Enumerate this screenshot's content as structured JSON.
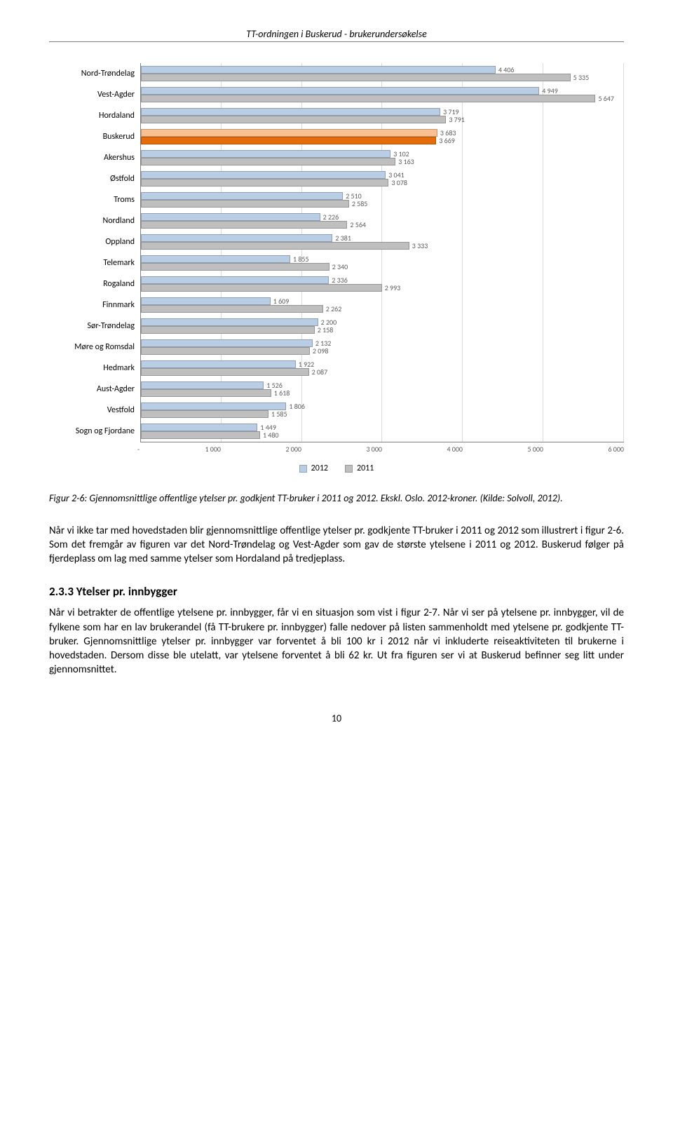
{
  "header_title": "TT-ordningen i Buskerud - brukerundersøkelse",
  "chart": {
    "type": "bar-horizontal-grouped",
    "xmax": 6000,
    "xtick_step": 1000,
    "xticks": [
      "-",
      "1 000",
      "2 000",
      "3 000",
      "4 000",
      "5 000",
      "6 000"
    ],
    "bar_fill_2012": "#b9cde5",
    "bar_fill_2011": "#bfbfbf",
    "highlight_fill_2012": "#fac090",
    "highlight_fill_2011": "#e46c0a",
    "grid_color": "#d9d9d9",
    "axis_color": "#808080",
    "label_fontsize": 10,
    "cat_fontsize": 12,
    "categories": [
      {
        "name": "Nord-Trøndelag",
        "v2012": 4406,
        "v2011": 5335,
        "label2012": "4 406",
        "label2011": "5 335"
      },
      {
        "name": "Vest-Agder",
        "v2012": 4949,
        "v2011": 5647,
        "label2012": "4 949",
        "label2011": "5 647"
      },
      {
        "name": "Hordaland",
        "v2012": 3719,
        "v2011": 3791,
        "label2012": "3 719",
        "label2011": "3 791"
      },
      {
        "name": "Buskerud",
        "v2012": 3683,
        "v2011": 3669,
        "label2012": "3 683",
        "label2011": "3 669",
        "highlight": true
      },
      {
        "name": "Akershus",
        "v2012": 3102,
        "v2011": 3163,
        "label2012": "3 102",
        "label2011": "3 163"
      },
      {
        "name": "Østfold",
        "v2012": 3041,
        "v2011": 3078,
        "label2012": "3 041",
        "label2011": "3 078"
      },
      {
        "name": "Troms",
        "v2012": 2510,
        "v2011": 2585,
        "label2012": "2 510",
        "label2011": "2 585"
      },
      {
        "name": "Nordland",
        "v2012": 2226,
        "v2011": 2564,
        "label2012": "2 226",
        "label2011": "2 564"
      },
      {
        "name": "Oppland",
        "v2012": 2381,
        "v2011": 3333,
        "label2012": "2 381",
        "label2011": "3 333"
      },
      {
        "name": "Telemark",
        "v2012": 1855,
        "v2011": 2340,
        "label2012": "1 855",
        "label2011": "2 340"
      },
      {
        "name": "Rogaland",
        "v2012": 2336,
        "v2011": 2993,
        "label2012": "2 336",
        "label2011": "2 993"
      },
      {
        "name": "Finnmark",
        "v2012": 1609,
        "v2011": 2262,
        "label2012": "1 609",
        "label2011": "2 262"
      },
      {
        "name": "Sør-Trøndelag",
        "v2012": 2200,
        "v2011": 2158,
        "label2012": "2 200",
        "label2011": "2 158"
      },
      {
        "name": "Møre og Romsdal",
        "v2012": 2132,
        "v2011": 2098,
        "label2012": "2 132",
        "label2011": "2 098"
      },
      {
        "name": "Hedmark",
        "v2012": 1922,
        "v2011": 2087,
        "label2012": "1 922",
        "label2011": "2 087"
      },
      {
        "name": "Aust-Agder",
        "v2012": 1526,
        "v2011": 1618,
        "label2012": "1 526",
        "label2011": "1 618"
      },
      {
        "name": "Vestfold",
        "v2012": 1806,
        "v2011": 1585,
        "label2012": "1 806",
        "label2011": "1 585"
      },
      {
        "name": "Sogn og Fjordane",
        "v2012": 1449,
        "v2011": 1480,
        "label2012": "1 449",
        "label2011": "1 480"
      }
    ],
    "legend": [
      {
        "label": "2012",
        "color": "#b9cde5"
      },
      {
        "label": "2011",
        "color": "#bfbfbf"
      }
    ]
  },
  "caption": "Figur 2-6: Gjennomsnittlige offentlige ytelser pr. godkjent TT-bruker i 2011 og 2012. Ekskl. Oslo. 2012-kroner. (Kilde: Solvoll, 2012).",
  "paragraph1": "Når vi ikke tar med hovedstaden blir gjennomsnittlige offentlige ytelser pr. godkjente TT-bruker i 2011 og 2012 som illustrert i figur 2-6. Som det fremgår av figuren var det Nord-Trøndelag og Vest-Agder som gav de største ytelsene i 2011 og 2012. Buskerud følger på fjerdeplass om lag med samme ytelser som Hordaland på tredjeplass.",
  "section_heading": "2.3.3   Ytelser pr. innbygger",
  "paragraph2": "Når vi betrakter de offentlige ytelsene pr. innbygger, får vi en situasjon som vist i figur 2-7. Når vi ser på ytelsene pr. innbygger, vil de fylkene som har en lav brukerandel (få TT-brukere pr. innbygger) falle nedover på listen sammenholdt med ytelsene pr. godkjente TT-bruker. Gjennomsnittlige ytelser pr. innbygger var forventet å bli 100 kr i 2012 når vi inkluderte reiseaktiviteten til brukerne i hovedstaden. Dersom disse ble utelatt, var ytelsene forventet å bli 62 kr. Ut fra figuren ser vi at Buskerud befinner seg litt under gjennomsnittet.",
  "page_number": "10"
}
